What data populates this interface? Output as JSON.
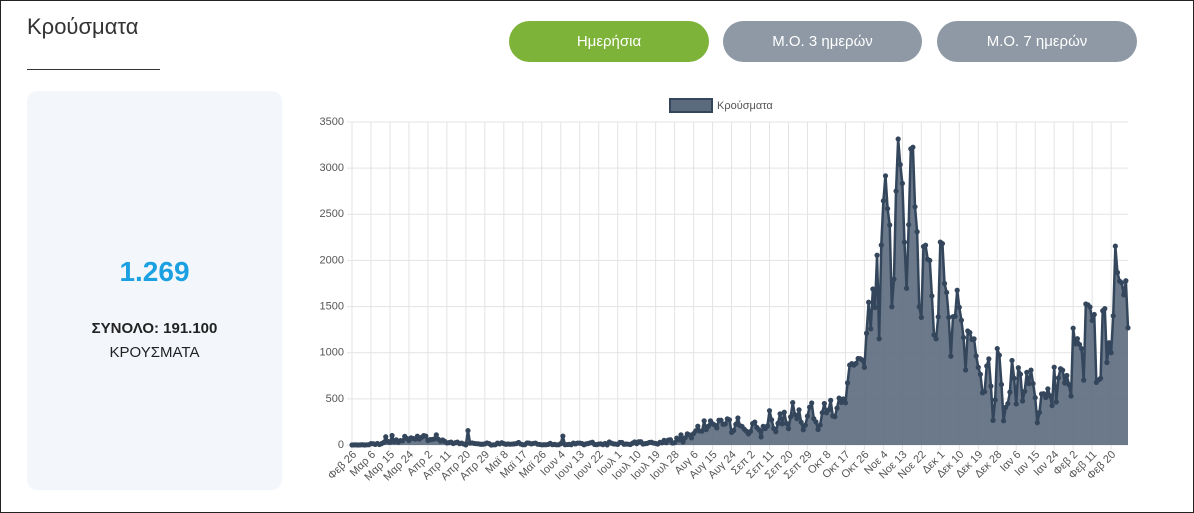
{
  "header": {
    "title": "Κρούσματα"
  },
  "buttons": [
    "Ημερήσια",
    "Μ.Ο. 3 ημερών",
    "Μ.Ο. 7 ημερών"
  ],
  "summary": {
    "value": "1.269",
    "total": "ΣΥΝΟΛΟ: 191.100",
    "unit": "ΚΡΟΥΣΜΑΤΑ"
  },
  "chart_data": {
    "type": "area-line",
    "grid": true,
    "ylim": [
      0,
      3500
    ],
    "yticks": [
      0,
      500,
      1000,
      1500,
      2000,
      2500,
      3000,
      3500
    ],
    "categories": [
      "Φεβ 26",
      null,
      null,
      null,
      null,
      null,
      null,
      null,
      null,
      "Μαρ 6",
      null,
      null,
      null,
      null,
      null,
      null,
      null,
      null,
      "Μαρ 15",
      null,
      null,
      null,
      null,
      null,
      null,
      null,
      null,
      "Μαρ 24",
      null,
      null,
      null,
      null,
      null,
      null,
      null,
      null,
      "Απρ 2",
      null,
      null,
      null,
      null,
      null,
      null,
      null,
      null,
      "Απρ 11",
      null,
      null,
      null,
      null,
      null,
      null,
      null,
      null,
      "Απρ 20",
      null,
      null,
      null,
      null,
      null,
      null,
      null,
      null,
      "Απρ 29",
      null,
      null,
      null,
      null,
      null,
      null,
      null,
      null,
      "Μαϊ 8",
      null,
      null,
      null,
      null,
      null,
      null,
      null,
      null,
      "Μαϊ 17",
      null,
      null,
      null,
      null,
      null,
      null,
      null,
      null,
      "Μαϊ 26",
      null,
      null,
      null,
      null,
      null,
      null,
      null,
      null,
      "Ιουν 4",
      null,
      null,
      null,
      null,
      null,
      null,
      null,
      null,
      "Ιουν 13",
      null,
      null,
      null,
      null,
      null,
      null,
      null,
      null,
      "Ιουν 22",
      null,
      null,
      null,
      null,
      null,
      null,
      null,
      null,
      "Ιουλ 1",
      null,
      null,
      null,
      null,
      null,
      null,
      null,
      null,
      "Ιουλ 10",
      null,
      null,
      null,
      null,
      null,
      null,
      null,
      null,
      "Ιουλ 19",
      null,
      null,
      null,
      null,
      null,
      null,
      null,
      null,
      "Ιουλ 28",
      null,
      null,
      null,
      null,
      null,
      null,
      null,
      null,
      "Αυγ 6",
      null,
      null,
      null,
      null,
      null,
      null,
      null,
      null,
      "Αυγ 15",
      null,
      null,
      null,
      null,
      null,
      null,
      null,
      null,
      "Αυγ 24",
      null,
      null,
      null,
      null,
      null,
      null,
      null,
      null,
      "Σεπ 2",
      null,
      null,
      null,
      null,
      null,
      null,
      null,
      null,
      "Σεπ 11",
      null,
      null,
      null,
      null,
      null,
      null,
      null,
      null,
      "Σεπ 20",
      null,
      null,
      null,
      null,
      null,
      null,
      null,
      null,
      "Σεπ 29",
      null,
      null,
      null,
      null,
      null,
      null,
      null,
      null,
      "Οκτ 8",
      null,
      null,
      null,
      null,
      null,
      null,
      null,
      null,
      "Οκτ 17",
      null,
      null,
      null,
      null,
      null,
      null,
      null,
      null,
      "Οκτ 26",
      null,
      null,
      null,
      null,
      null,
      null,
      null,
      null,
      "Νοε 4",
      null,
      null,
      null,
      null,
      null,
      null,
      null,
      null,
      "Νοε 13",
      null,
      null,
      null,
      null,
      null,
      null,
      null,
      null,
      "Νοε 22",
      null,
      null,
      null,
      null,
      null,
      null,
      null,
      null,
      "Δεκ 1",
      null,
      null,
      null,
      null,
      null,
      null,
      null,
      null,
      "Δεκ 10",
      null,
      null,
      null,
      null,
      null,
      null,
      null,
      null,
      "Δεκ 19",
      null,
      null,
      null,
      null,
      null,
      null,
      null,
      null,
      "Δεκ 28",
      null,
      null,
      null,
      null,
      null,
      null,
      null,
      null,
      "Ιαν 6",
      null,
      null,
      null,
      null,
      null,
      null,
      null,
      null,
      "Ιαν 15",
      null,
      null,
      null,
      null,
      null,
      null,
      null,
      null,
      "Ιαν 24",
      null,
      null,
      null,
      null,
      null,
      null,
      null,
      null,
      "Φεβ 2",
      null,
      null,
      null,
      null,
      null,
      null,
      null,
      null,
      "Φεβ 11",
      null,
      null,
      null,
      null,
      null,
      null,
      null,
      null,
      "Φεβ 20",
      null,
      null,
      null,
      null,
      null,
      null,
      null,
      null
    ],
    "series": [
      {
        "name": "Κρούσματα",
        "color": "#34465c",
        "fill": "#5b6a7d",
        "values": [
          0,
          1,
          1,
          0,
          1,
          3,
          0,
          2,
          3,
          15,
          14,
          7,
          16,
          5,
          15,
          27,
          89,
          38,
          30,
          103,
          35,
          56,
          31,
          48,
          46,
          94,
          71,
          48,
          78,
          71,
          63,
          95,
          64,
          83,
          102,
          96,
          49,
          58,
          60,
          65,
          110,
          62,
          42,
          54,
          39,
          23,
          26,
          31,
          16,
          24,
          31,
          14,
          20,
          11,
          1,
          156,
          20,
          22,
          17,
          14,
          13,
          8,
          8,
          12,
          22,
          15,
          0,
          2,
          3,
          21,
          12,
          25,
          15,
          8,
          11,
          9,
          10,
          12,
          16,
          27,
          10,
          3,
          4,
          22,
          20,
          12,
          17,
          21,
          9,
          6,
          2,
          3,
          3,
          6,
          18,
          4,
          7,
          2,
          3,
          15,
          97,
          3,
          5,
          7,
          3,
          21,
          12,
          21,
          20,
          16,
          2,
          12,
          16,
          23,
          30,
          7,
          4,
          11,
          12,
          4,
          17,
          1,
          33,
          20,
          12,
          10,
          6,
          28,
          28,
          8,
          11,
          9,
          5,
          19,
          33,
          15,
          36,
          36,
          11,
          15,
          18,
          28,
          30,
          21,
          17,
          11,
          29,
          24,
          50,
          25,
          53,
          57,
          21,
          26,
          75,
          55,
          110,
          34,
          78,
          121,
          110,
          77,
          124,
          153,
          203,
          151,
          150,
          262,
          168,
          203,
          262,
          230,
          217,
          185,
          269,
          269,
          225,
          228,
          284,
          273,
          136,
          157,
          224,
          293,
          209,
          201,
          171,
          150,
          120,
          147,
          232,
          248,
          190,
          165,
          87,
          202,
          179,
          206,
          372,
          273,
          179,
          145,
          235,
          338,
          230,
          355,
          235,
          177,
          304,
          459,
          330,
          286,
          381,
          247,
          165,
          215,
          313,
          410,
          455,
          285,
          251,
          167,
          216,
          350,
          450,
          349,
          380,
          484,
          314,
          307,
          399,
          508,
          462,
          499,
          457,
          673,
          866,
          882,
          865,
          884,
          937,
          935,
          921,
          841,
          1211,
          1547,
          1259,
          1690,
          1490,
          2056,
          1151,
          2166,
          2646,
          2917,
          2561,
          2384,
          1498,
          1796,
          2752,
          3316,
          3038,
          2835,
          2198,
          1698,
          2387,
          3209,
          3227,
          2581,
          2311,
          1498,
          1383,
          2150,
          2165,
          2012,
          2000,
          1615,
          1193,
          1151,
          1389,
          2199,
          2183,
          1750,
          1653,
          1383,
          962,
          1390,
          1395,
          1677,
          1492,
          1352,
          1165,
          813,
          1236,
          1218,
          1143,
          1150,
          965,
          841,
          766,
          566,
          578,
          856,
          933,
          638,
          267,
          489,
          1045,
          973,
          656,
          262,
          408,
          448,
          573,
          916,
          722,
          445,
          837,
          767,
          477,
          582,
          787,
          664,
          812,
          666,
          513,
          242,
          352,
          553,
          555,
          514,
          609,
          534,
          427,
          843,
          466,
          728,
          827,
          811,
          672,
          753,
          654,
          530,
          1266,
          1096,
          1152,
          1089,
          1044,
          703,
          1528,
          1519,
          1496,
          1350,
          1414,
          678,
          704,
          722,
          1455,
          1478,
          894,
          1108,
          1000,
          1400,
          2155,
          1869,
          1776,
          1759,
          1627,
          1780,
          1269
        ]
      }
    ]
  }
}
